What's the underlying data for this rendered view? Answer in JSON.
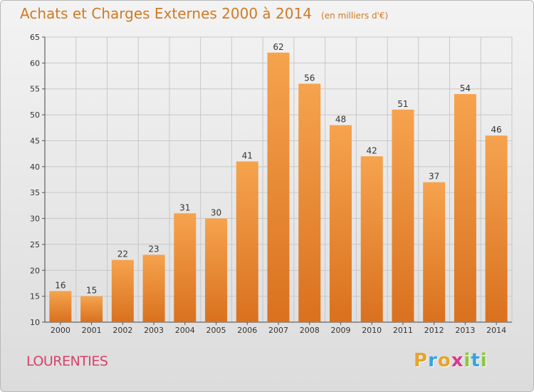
{
  "header": {
    "title": "Achats et Charges Externes 2000 à 2014",
    "subtitle": "(en milliers d'€)"
  },
  "footer": {
    "commune": "LOURENTIES",
    "brand": "Proxiti",
    "brand_letters": [
      {
        "ch": "P",
        "color": "#e8a32b"
      },
      {
        "ch": "r",
        "color": "#3aa3d8"
      },
      {
        "ch": "o",
        "color": "#e8a32b"
      },
      {
        "ch": "x",
        "color": "#d83a8a"
      },
      {
        "ch": "i",
        "color": "#8cc63f"
      },
      {
        "ch": "t",
        "color": "#3aa3d8"
      },
      {
        "ch": "i",
        "color": "#8cc63f"
      }
    ]
  },
  "colors": {
    "bar_light": "#f6a34e",
    "bar_dark": "#d9711f",
    "title": "#cf7a22",
    "commune": "#d5436b",
    "grid": "#c8c8c8",
    "axis_text": "#333333"
  },
  "chart_data": {
    "type": "bar",
    "title": "Achats et Charges Externes 2000 à 2014",
    "subtitle": "(en milliers d'€)",
    "categories": [
      "2000",
      "2001",
      "2002",
      "2003",
      "2004",
      "2005",
      "2006",
      "2007",
      "2008",
      "2009",
      "2010",
      "2011",
      "2012",
      "2013",
      "2014"
    ],
    "values": [
      16,
      15,
      22,
      23,
      31,
      30,
      41,
      62,
      56,
      48,
      42,
      51,
      37,
      54,
      46
    ],
    "xlabel": "",
    "ylabel": "",
    "ylim": [
      10,
      65
    ],
    "yticks": [
      10,
      15,
      20,
      25,
      30,
      35,
      40,
      45,
      50,
      55,
      60,
      65
    ],
    "grid": true,
    "legend": "none",
    "data_labels": true
  }
}
